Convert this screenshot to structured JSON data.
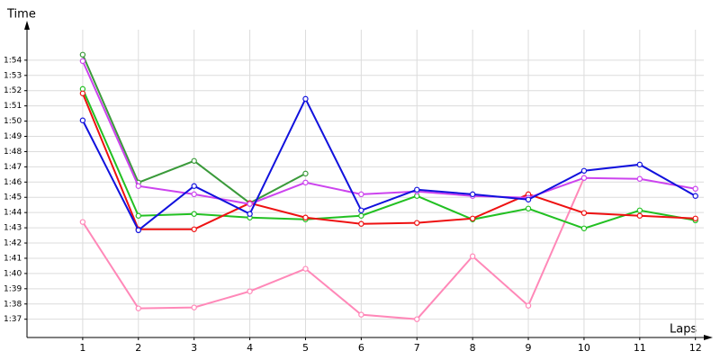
{
  "chart_data": {
    "type": "line",
    "y_label": "Time",
    "x_label": "Laps",
    "x": [
      1,
      2,
      3,
      4,
      5,
      6,
      7,
      8,
      9,
      10,
      11,
      12
    ],
    "xlim": [
      0,
      12.15
    ],
    "xticks": [
      1,
      2,
      3,
      4,
      5,
      6,
      7,
      8,
      9,
      10,
      11,
      12
    ],
    "ylim": [
      95.8,
      116
    ],
    "yticks": [
      {
        "value": 97,
        "label": "1:37"
      },
      {
        "value": 98,
        "label": "1:38"
      },
      {
        "value": 99,
        "label": "1:39"
      },
      {
        "value": 100,
        "label": "1:40"
      },
      {
        "value": 101,
        "label": "1:41"
      },
      {
        "value": 102,
        "label": "1:42"
      },
      {
        "value": 103,
        "label": "1:43"
      },
      {
        "value": 104,
        "label": "1:44"
      },
      {
        "value": 105,
        "label": "1:45"
      },
      {
        "value": 106,
        "label": "1:46"
      },
      {
        "value": 107,
        "label": "1:47"
      },
      {
        "value": 108,
        "label": "1:48"
      },
      {
        "value": 109,
        "label": "1:49"
      },
      {
        "value": 110,
        "label": "1:50"
      },
      {
        "value": 111,
        "label": "1:51"
      },
      {
        "value": 112,
        "label": "1:52"
      },
      {
        "value": 113,
        "label": "1:53"
      },
      {
        "value": 114,
        "label": "1:54"
      }
    ],
    "grid": true,
    "series": [
      {
        "color": "#ff88b8",
        "values": [
          103.38,
          97.71,
          97.77,
          98.83,
          100.31,
          97.3,
          97.0,
          101.13,
          97.89,
          106.27,
          null,
          null
        ]
      },
      {
        "color": "#3a9a3a",
        "values": [
          114.36,
          105.97,
          107.39,
          104.62,
          106.56,
          null,
          null,
          null,
          null,
          null,
          null,
          null
        ]
      },
      {
        "color": "#22c022",
        "values": [
          112.11,
          103.79,
          103.91,
          103.67,
          103.55,
          103.79,
          105.09,
          103.55,
          104.26,
          102.96,
          104.14,
          103.49
        ]
      },
      {
        "color": "#ee1111",
        "values": [
          111.82,
          102.9,
          102.9,
          104.62,
          103.67,
          103.26,
          103.32,
          103.61,
          105.2,
          103.97,
          103.79,
          103.61
        ]
      },
      {
        "color": "#cc44ee",
        "values": [
          113.94,
          105.74,
          105.2,
          104.56,
          105.97,
          105.2,
          105.38,
          105.09,
          104.97,
          106.27,
          106.21,
          105.56
        ]
      },
      {
        "color": "#1111dd",
        "values": [
          110.05,
          102.84,
          105.74,
          103.91,
          111.46,
          104.14,
          105.5,
          105.2,
          104.85,
          106.74,
          107.15,
          105.09
        ]
      }
    ]
  }
}
